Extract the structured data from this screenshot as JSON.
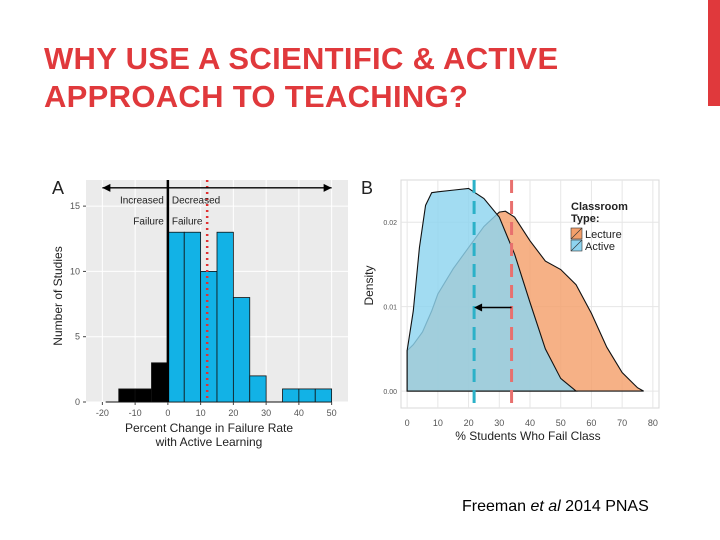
{
  "slide": {
    "title_line1": "WHY USE A SCIENTIFIC & ACTIVE",
    "title_line2": "APPROACH TO TEACHING?",
    "credit_pre": "Freeman ",
    "credit_em": "et al",
    "credit_post": " 2014 PNAS",
    "accent_color": "#e0393c"
  },
  "chart_data": [
    {
      "type": "bar",
      "panel_label": "A",
      "xlabel": "Percent Change in Failure Rate with Active Learning",
      "ylabel": "Number of Studies",
      "xlim": [
        -25,
        55
      ],
      "ylim": [
        0,
        17
      ],
      "x_ticks": [
        -20,
        -10,
        0,
        10,
        20,
        30,
        40,
        50
      ],
      "y_ticks": [
        0,
        5,
        10,
        15
      ],
      "bin_width": 5,
      "bins": [
        {
          "x0": -15,
          "count": 1,
          "color": "#000000"
        },
        {
          "x0": -10,
          "count": 1,
          "color": "#000000"
        },
        {
          "x0": -5,
          "count": 3,
          "color": "#000000"
        },
        {
          "x0": 0,
          "count": 13,
          "color": "#12b2e6"
        },
        {
          "x0": 5,
          "count": 13,
          "color": "#12b2e6"
        },
        {
          "x0": 10,
          "count": 10,
          "color": "#12b2e6"
        },
        {
          "x0": 15,
          "count": 13,
          "color": "#12b2e6"
        },
        {
          "x0": 20,
          "count": 8,
          "color": "#12b2e6"
        },
        {
          "x0": 25,
          "count": 2,
          "color": "#12b2e6"
        },
        {
          "x0": 30,
          "count": 0,
          "color": "#12b2e6"
        },
        {
          "x0": 35,
          "count": 1,
          "color": "#12b2e6"
        },
        {
          "x0": 40,
          "count": 1,
          "color": "#12b2e6"
        },
        {
          "x0": 45,
          "count": 1,
          "color": "#12b2e6"
        }
      ],
      "zero_line_x": 0,
      "median_line_x": 12,
      "median_line_color": "#e03030",
      "annotations": {
        "left_line1": "Increased",
        "left_line2": "Failure",
        "right_line1": "Decreased",
        "right_line2": "Failure",
        "arrow_from": -20,
        "arrow_to": 50,
        "arrow_y": 16.4
      },
      "grid": true
    },
    {
      "type": "area",
      "panel_label": "B",
      "xlabel": "% Students Who Fail Class",
      "ylabel": "Density",
      "xlim": [
        -2,
        82
      ],
      "ylim": [
        -0.002,
        0.025
      ],
      "x_ticks": [
        0,
        10,
        20,
        30,
        40,
        50,
        60,
        70,
        80
      ],
      "y_ticks": [
        0.0,
        0.01,
        0.02
      ],
      "y_tick_labels": [
        "0.00",
        "0.01",
        "0.02"
      ],
      "legend_title_line1": "Classroom",
      "legend_title_line2": "Type:",
      "legend_position": "top-right",
      "grid": true,
      "series": [
        {
          "name": "Lecture",
          "color": "#f4a06b",
          "x": [
            0,
            2,
            5,
            8,
            10,
            15,
            20,
            25,
            30,
            32,
            35,
            40,
            45,
            50,
            55,
            60,
            65,
            70,
            75,
            77
          ],
          "y": [
            0.0048,
            0.0055,
            0.007,
            0.0095,
            0.0115,
            0.0145,
            0.017,
            0.0195,
            0.0212,
            0.0213,
            0.0206,
            0.0178,
            0.0154,
            0.0144,
            0.0126,
            0.0092,
            0.0052,
            0.0022,
            0.0004,
            0.0
          ]
        },
        {
          "name": "Active",
          "color": "#8ed4ef",
          "x": [
            0,
            2,
            4,
            6,
            8,
            10,
            15,
            20,
            25,
            30,
            35,
            40,
            45,
            50,
            55
          ],
          "y": [
            0.0048,
            0.0095,
            0.017,
            0.022,
            0.0235,
            0.0236,
            0.0238,
            0.024,
            0.0228,
            0.0206,
            0.0162,
            0.0105,
            0.005,
            0.0015,
            0.0
          ]
        }
      ],
      "vlines": [
        {
          "x": 21.8,
          "color": "#2bb1c8"
        },
        {
          "x": 34,
          "color": "#e8706e"
        }
      ],
      "arrow": {
        "from": 34,
        "to": 21.8,
        "y": 0.0099
      }
    }
  ]
}
